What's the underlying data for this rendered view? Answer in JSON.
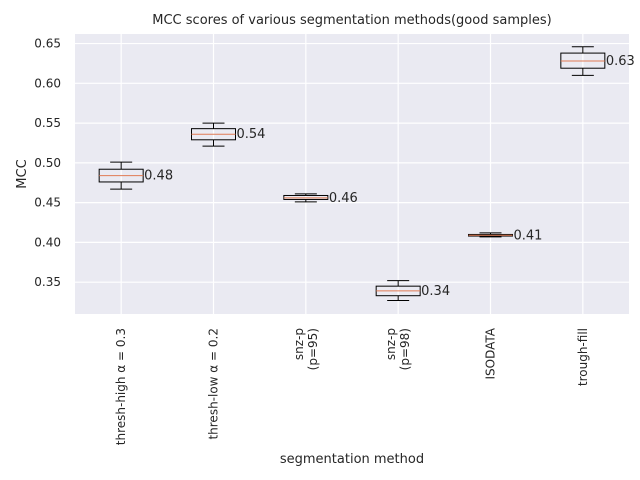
{
  "chart_data": {
    "type": "box",
    "title": "MCC scores of various segmentation methods(good samples)",
    "xlabel": "segmentation method",
    "ylabel": "MCC",
    "ylim": [
      0.31,
      0.662
    ],
    "yticks": [
      0.35,
      0.4,
      0.45,
      0.5,
      0.55,
      0.6,
      0.65
    ],
    "ytick_labels": [
      "0.35",
      "0.40",
      "0.45",
      "0.50",
      "0.55",
      "0.60",
      "0.65"
    ],
    "grid": true,
    "categories": [
      "thresh-high α = 0.3",
      "thresh-low α = 0.2",
      "snz-p\n(p=95)",
      "snz-p\n(p=98)",
      "ISODATA",
      "trough-fill"
    ],
    "boxes": [
      {
        "whisker_low": 0.467,
        "q1": 0.476,
        "median": 0.484,
        "q3": 0.492,
        "whisker_high": 0.501,
        "label": "0.48"
      },
      {
        "whisker_low": 0.521,
        "q1": 0.529,
        "median": 0.536,
        "q3": 0.543,
        "whisker_high": 0.55,
        "label": "0.54"
      },
      {
        "whisker_low": 0.451,
        "q1": 0.454,
        "median": 0.456,
        "q3": 0.459,
        "whisker_high": 0.461,
        "label": "0.46"
      },
      {
        "whisker_low": 0.327,
        "q1": 0.333,
        "median": 0.339,
        "q3": 0.345,
        "whisker_high": 0.352,
        "label": "0.34"
      },
      {
        "whisker_low": 0.407,
        "q1": 0.408,
        "median": 0.409,
        "q3": 0.41,
        "whisker_high": 0.412,
        "label": "0.41"
      },
      {
        "whisker_low": 0.61,
        "q1": 0.619,
        "median": 0.628,
        "q3": 0.638,
        "whisker_high": 0.646,
        "label": "0.63"
      }
    ]
  },
  "colors": {
    "plot_bg": "#EAEAF2",
    "grid": "#FFFFFF",
    "box": "#000000",
    "median": "#E07B54",
    "text": "#262626"
  }
}
